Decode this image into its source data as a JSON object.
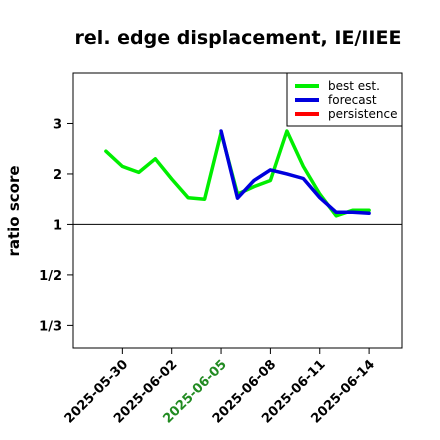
{
  "chart_data": {
    "type": "line",
    "title": "rel. edge displacement, IE/IIEE",
    "ylabel": "ratio score",
    "xlabel": "",
    "y_scale": "log-ratio",
    "ylim": [
      0.29,
      4.0
    ],
    "xlim": [
      "2025-05-27",
      "2025-06-16"
    ],
    "x_ticks": [
      {
        "label": "2025-05-30",
        "color": "#000000"
      },
      {
        "label": "2025-06-02",
        "color": "#000000"
      },
      {
        "label": "2025-06-05",
        "color": "#228B22"
      },
      {
        "label": "2025-06-08",
        "color": "#000000"
      },
      {
        "label": "2025-06-11",
        "color": "#000000"
      },
      {
        "label": "2025-06-14",
        "color": "#000000"
      }
    ],
    "y_ticks": [
      {
        "label": "3",
        "value": 3
      },
      {
        "label": "2",
        "value": 2
      },
      {
        "label": "1",
        "value": 1
      },
      {
        "label": "1/2",
        "value": 0.5
      },
      {
        "label": "1/3",
        "value": 0.3333
      }
    ],
    "reference_line": 1,
    "grid": false,
    "legend_position": "top-right",
    "series": [
      {
        "name": "best est.",
        "color": "#00ee00",
        "x": [
          "2025-05-29",
          "2025-05-30",
          "2025-05-31",
          "2025-06-01",
          "2025-06-02",
          "2025-06-03",
          "2025-06-04",
          "2025-06-05",
          "2025-06-06",
          "2025-06-07",
          "2025-06-08",
          "2025-06-09",
          "2025-06-10",
          "2025-06-11",
          "2025-06-12",
          "2025-06-13",
          "2025-06-14"
        ],
        "y": [
          2.45,
          2.15,
          2.03,
          2.3,
          1.9,
          1.53,
          1.5,
          2.82,
          1.6,
          1.75,
          1.87,
          2.85,
          2.15,
          1.6,
          1.17,
          1.28,
          1.28
        ]
      },
      {
        "name": "forecast",
        "color": "#0000dd",
        "x": [
          "2025-06-05",
          "2025-06-06",
          "2025-06-07",
          "2025-06-08",
          "2025-06-09",
          "2025-06-10",
          "2025-06-11",
          "2025-06-12",
          "2025-06-13",
          "2025-06-14"
        ],
        "y": [
          2.85,
          1.52,
          1.87,
          2.08,
          2.0,
          1.91,
          1.53,
          1.24,
          1.24,
          1.22
        ]
      },
      {
        "name": "persistence",
        "color": "#ff0000",
        "x": [],
        "y": []
      }
    ]
  }
}
